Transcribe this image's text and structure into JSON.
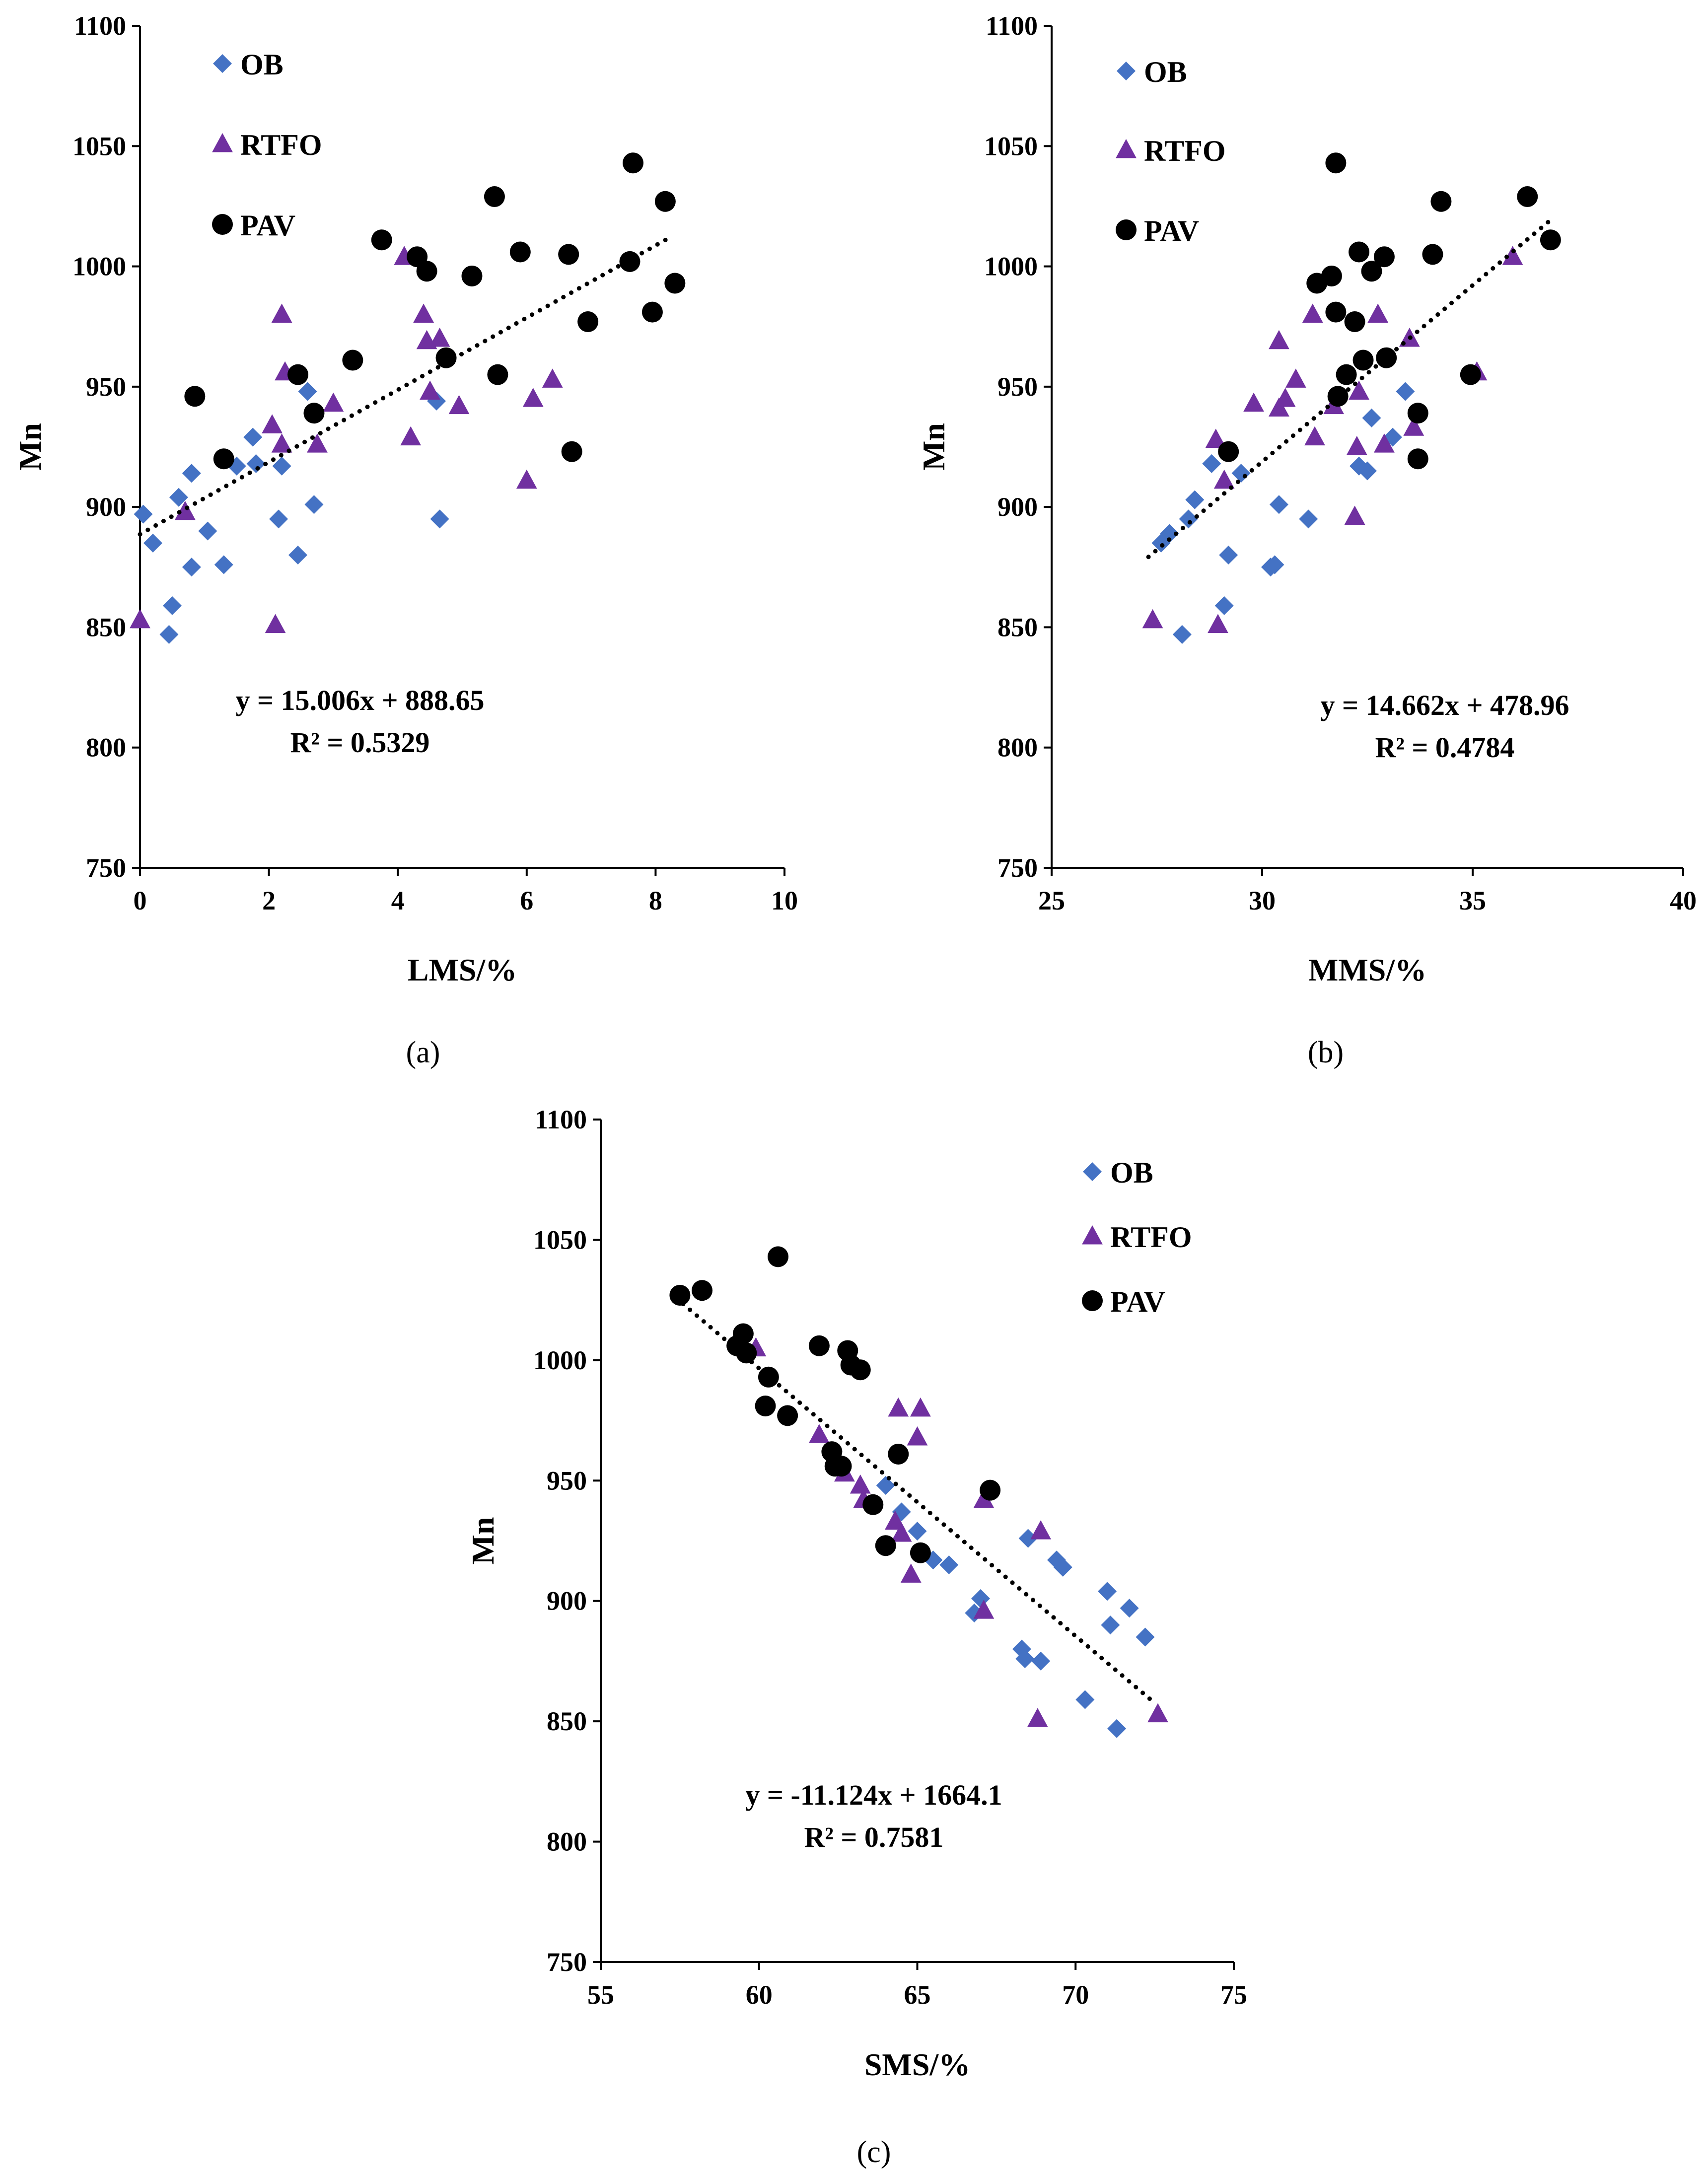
{
  "colors": {
    "OB": "#4472C4",
    "RTFO": "#7030A0",
    "PAV": "#000000"
  },
  "chart_data": [
    {
      "id": "a",
      "type": "scatter",
      "caption": "(a)",
      "xlabel": "LMS/%",
      "ylabel": "Mn",
      "xlim": [
        0,
        10
      ],
      "ylim": [
        750,
        1100
      ],
      "xticks": [
        "0",
        "2",
        "4",
        "6",
        "8",
        "10"
      ],
      "yticks": [
        "750",
        "800",
        "850",
        "900",
        "950",
        "1000",
        "1050",
        "1100"
      ],
      "legend": [
        "OB",
        "RTFO",
        "PAV"
      ],
      "series": [
        {
          "name": "OB",
          "marker": "diamond",
          "points": [
            [
              0.05,
              897
            ],
            [
              0.2,
              885
            ],
            [
              0.5,
              859
            ],
            [
              0.45,
              847
            ],
            [
              0.6,
              904
            ],
            [
              0.8,
              914
            ],
            [
              0.8,
              875
            ],
            [
              1.05,
              890
            ],
            [
              1.3,
              876
            ],
            [
              1.5,
              917
            ],
            [
              1.75,
              929
            ],
            [
              1.8,
              918
            ],
            [
              2.15,
              895
            ],
            [
              2.2,
              917
            ],
            [
              2.45,
              880
            ],
            [
              2.6,
              948
            ],
            [
              2.7,
              901
            ],
            [
              4.6,
              944
            ],
            [
              4.65,
              895
            ]
          ]
        },
        {
          "name": "RTFO",
          "marker": "triangle",
          "points": [
            [
              0.0,
              853
            ],
            [
              0.7,
              898
            ],
            [
              2.05,
              934
            ],
            [
              2.1,
              851
            ],
            [
              2.2,
              980
            ],
            [
              2.25,
              956
            ],
            [
              2.2,
              926
            ],
            [
              2.75,
              926
            ],
            [
              3.0,
              943
            ],
            [
              4.1,
              1004
            ],
            [
              4.2,
              929
            ],
            [
              4.4,
              980
            ],
            [
              4.45,
              969
            ],
            [
              4.5,
              948
            ],
            [
              4.65,
              970
            ],
            [
              4.95,
              942
            ],
            [
              6.0,
              911
            ],
            [
              6.1,
              945
            ],
            [
              6.4,
              953
            ]
          ]
        },
        {
          "name": "PAV",
          "marker": "circle",
          "points": [
            [
              0.85,
              946
            ],
            [
              1.3,
              920
            ],
            [
              2.45,
              955
            ],
            [
              2.7,
              939
            ],
            [
              3.3,
              961
            ],
            [
              3.75,
              1011
            ],
            [
              4.3,
              1004
            ],
            [
              4.45,
              998
            ],
            [
              4.75,
              962
            ],
            [
              5.15,
              996
            ],
            [
              5.5,
              1029
            ],
            [
              5.55,
              955
            ],
            [
              5.9,
              1006
            ],
            [
              6.65,
              1005
            ],
            [
              6.7,
              923
            ],
            [
              6.95,
              977
            ],
            [
              7.6,
              1002
            ],
            [
              7.65,
              1043
            ],
            [
              7.95,
              981
            ],
            [
              8.15,
              1027
            ],
            [
              8.3,
              993
            ]
          ]
        }
      ],
      "trendline": {
        "x": [
          0,
          8.2
        ],
        "slope": 15.006,
        "intercept": 888.65
      },
      "equation": "y = 15.006x + 888.65",
      "r2_label": "R² = 0.5329"
    },
    {
      "id": "b",
      "type": "scatter",
      "caption": "(b)",
      "xlabel": "MMS/%",
      "ylabel": "Mn",
      "xlim": [
        25,
        40
      ],
      "ylim": [
        750,
        1100
      ],
      "xticks": [
        "25",
        "30",
        "35",
        "40"
      ],
      "yticks": [
        "750",
        "800",
        "850",
        "900",
        "950",
        "1000",
        "1050",
        "1100"
      ],
      "legend": [
        "OB",
        "RTFO",
        "PAV"
      ],
      "series": [
        {
          "name": "OB",
          "marker": "diamond",
          "points": [
            [
              27.6,
              885
            ],
            [
              27.8,
              889
            ],
            [
              28.1,
              847
            ],
            [
              28.25,
              895
            ],
            [
              28.4,
              903
            ],
            [
              28.8,
              918
            ],
            [
              29.2,
              880
            ],
            [
              29.1,
              859
            ],
            [
              29.5,
              914
            ],
            [
              30.2,
              875
            ],
            [
              30.3,
              876
            ],
            [
              30.4,
              901
            ],
            [
              31.1,
              895
            ],
            [
              32.3,
              917
            ],
            [
              32.5,
              915
            ],
            [
              32.6,
              937
            ],
            [
              33.1,
              929
            ],
            [
              33.4,
              948
            ]
          ]
        },
        {
          "name": "RTFO",
          "marker": "triangle",
          "points": [
            [
              27.4,
              853
            ],
            [
              28.9,
              928
            ],
            [
              28.95,
              851
            ],
            [
              29.1,
              911
            ],
            [
              29.8,
              943
            ],
            [
              30.4,
              969
            ],
            [
              30.4,
              941
            ],
            [
              30.55,
              945
            ],
            [
              30.8,
              953
            ],
            [
              31.2,
              980
            ],
            [
              31.25,
              929
            ],
            [
              31.7,
              942
            ],
            [
              32.2,
              896
            ],
            [
              32.25,
              925
            ],
            [
              32.3,
              948
            ],
            [
              32.75,
              980
            ],
            [
              32.9,
              926
            ],
            [
              33.5,
              970
            ],
            [
              33.6,
              933
            ],
            [
              35.1,
              956
            ],
            [
              35.95,
              1004
            ]
          ]
        },
        {
          "name": "PAV",
          "marker": "circle",
          "points": [
            [
              29.2,
              923
            ],
            [
              31.3,
              993
            ],
            [
              31.65,
              996
            ],
            [
              31.75,
              1043
            ],
            [
              31.75,
              981
            ],
            [
              31.8,
              946
            ],
            [
              32.0,
              955
            ],
            [
              32.2,
              977
            ],
            [
              32.3,
              1006
            ],
            [
              32.4,
              961
            ],
            [
              32.6,
              998
            ],
            [
              32.9,
              1004
            ],
            [
              32.95,
              962
            ],
            [
              33.7,
              939
            ],
            [
              33.7,
              920
            ],
            [
              34.05,
              1005
            ],
            [
              34.25,
              1027
            ],
            [
              34.95,
              955
            ],
            [
              36.3,
              1029
            ],
            [
              36.85,
              1011
            ]
          ]
        }
      ],
      "trendline": {
        "x": [
          27.3,
          36.9
        ],
        "slope": 14.662,
        "intercept": 478.96
      },
      "equation": "y = 14.662x + 478.96",
      "r2_label": "R² = 0.4784"
    },
    {
      "id": "c",
      "type": "scatter",
      "caption": "(c)",
      "xlabel": "SMS/%",
      "ylabel": "Mn",
      "xlim": [
        55,
        75
      ],
      "ylim": [
        750,
        1100
      ],
      "xticks": [
        "55",
        "60",
        "65",
        "70",
        "75"
      ],
      "yticks": [
        "750",
        "800",
        "850",
        "900",
        "950",
        "1000",
        "1050",
        "1100"
      ],
      "legend": [
        "OB",
        "RTFO",
        "PAV"
      ],
      "series": [
        {
          "name": "OB",
          "marker": "diamond",
          "points": [
            [
              64.0,
              948
            ],
            [
              64.5,
              937
            ],
            [
              65.0,
              929
            ],
            [
              65.5,
              917
            ],
            [
              66.0,
              915
            ],
            [
              66.8,
              895
            ],
            [
              67.0,
              901
            ],
            [
              68.3,
              880
            ],
            [
              68.4,
              876
            ],
            [
              68.5,
              926
            ],
            [
              68.9,
              875
            ],
            [
              69.4,
              917
            ],
            [
              69.6,
              914
            ],
            [
              70.3,
              859
            ],
            [
              71.0,
              904
            ],
            [
              71.1,
              890
            ],
            [
              71.3,
              847
            ],
            [
              71.7,
              897
            ],
            [
              72.2,
              885
            ]
          ]
        },
        {
          "name": "RTFO",
          "marker": "triangle",
          "points": [
            [
              59.9,
              1005
            ],
            [
              61.9,
              969
            ],
            [
              62.7,
              953
            ],
            [
              63.2,
              948
            ],
            [
              63.3,
              942
            ],
            [
              64.3,
              933
            ],
            [
              64.4,
              980
            ],
            [
              64.5,
              928
            ],
            [
              64.8,
              911
            ],
            [
              65.0,
              968
            ],
            [
              65.1,
              980
            ],
            [
              67.1,
              942
            ],
            [
              67.1,
              896
            ],
            [
              68.8,
              851
            ],
            [
              68.9,
              929
            ],
            [
              72.6,
              853
            ]
          ]
        },
        {
          "name": "PAV",
          "marker": "circle",
          "points": [
            [
              57.5,
              1027
            ],
            [
              58.2,
              1029
            ],
            [
              59.3,
              1006
            ],
            [
              59.5,
              1011
            ],
            [
              59.6,
              1003
            ],
            [
              60.2,
              981
            ],
            [
              60.3,
              993
            ],
            [
              60.6,
              1043
            ],
            [
              60.9,
              977
            ],
            [
              61.9,
              1006
            ],
            [
              62.3,
              962
            ],
            [
              62.4,
              956
            ],
            [
              62.6,
              956
            ],
            [
              62.8,
              1004
            ],
            [
              62.9,
              998
            ],
            [
              63.2,
              996
            ],
            [
              63.6,
              940
            ],
            [
              64.0,
              923
            ],
            [
              64.4,
              961
            ],
            [
              65.1,
              920
            ],
            [
              67.3,
              946
            ]
          ]
        }
      ],
      "trendline": {
        "x": [
          57.6,
          72.5
        ],
        "slope": -11.124,
        "intercept": 1664.1
      },
      "equation": "y = -11.124x + 1664.1",
      "r2_label": "R² = 0.7581"
    }
  ]
}
